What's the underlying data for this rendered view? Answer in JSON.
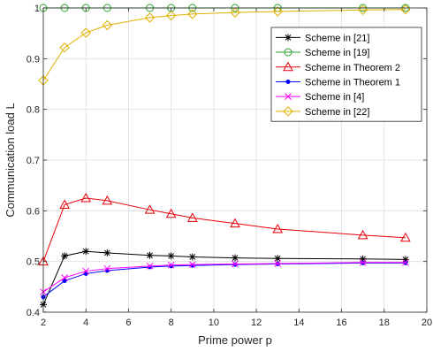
{
  "chart_data": {
    "type": "line",
    "title": "",
    "xlabel": "Prime power p",
    "ylabel": "Communication load L",
    "xlim": [
      2,
      20
    ],
    "ylim": [
      0.4,
      1.0
    ],
    "xticks": [
      2,
      4,
      6,
      8,
      10,
      12,
      14,
      16,
      18,
      20
    ],
    "yticks": [
      0.4,
      0.5,
      0.6,
      0.7,
      0.8,
      0.9,
      1.0
    ],
    "xtick_labels": [
      "2",
      "4",
      "6",
      "8",
      "10",
      "12",
      "14",
      "16",
      "18",
      "20"
    ],
    "ytick_labels": [
      "0.4",
      "0.5",
      "0.6",
      "0.7",
      "0.8",
      "0.9",
      "1"
    ],
    "grid": true,
    "legend_position": "top-right",
    "x": [
      2,
      3,
      4,
      5,
      7,
      8,
      9,
      11,
      13,
      17,
      19
    ],
    "series": [
      {
        "name": "Scheme in [21]",
        "color": "#000000",
        "marker": "asterisk",
        "values": [
          0.415,
          0.511,
          0.52,
          0.517,
          0.512,
          0.511,
          0.509,
          0.507,
          0.506,
          0.505,
          0.504
        ]
      },
      {
        "name": "Scheme in [19]",
        "color": "#2ca02c",
        "marker": "circle",
        "values": [
          1.0,
          1.0,
          1.0,
          1.0,
          1.0,
          1.0,
          1.0,
          1.0,
          1.0,
          1.0,
          1.0
        ]
      },
      {
        "name": "Scheme in Theorem 2",
        "color": "#e8000b",
        "marker": "triangle",
        "values": [
          0.5,
          0.612,
          0.625,
          0.62,
          0.602,
          0.594,
          0.586,
          0.575,
          0.564,
          0.552,
          0.547
        ]
      },
      {
        "name": "Scheme in Theorem 1",
        "color": "#0000ff",
        "marker": "dot",
        "values": [
          0.43,
          0.462,
          0.476,
          0.482,
          0.489,
          0.491,
          0.492,
          0.494,
          0.495,
          0.497,
          0.497
        ]
      },
      {
        "name": "Scheme in [4]",
        "color": "#ff00ff",
        "marker": "x",
        "values": [
          0.44,
          0.468,
          0.481,
          0.486,
          0.491,
          0.493,
          0.494,
          0.495,
          0.496,
          0.498,
          0.498
        ]
      },
      {
        "name": "Scheme in [22]",
        "color": "#e0b000",
        "marker": "diamond",
        "values": [
          0.857,
          0.922,
          0.951,
          0.966,
          0.981,
          0.985,
          0.988,
          0.991,
          0.993,
          0.996,
          0.997
        ]
      }
    ]
  }
}
